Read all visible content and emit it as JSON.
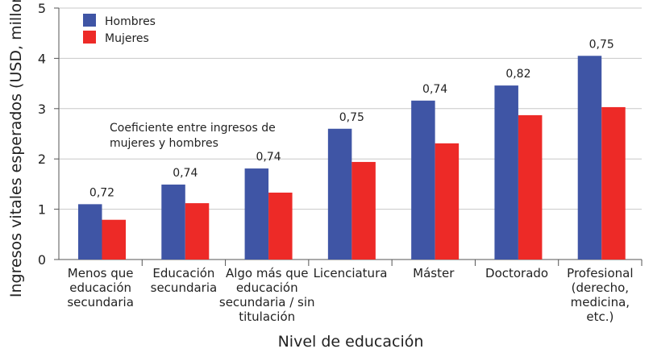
{
  "chart_data": {
    "type": "bar",
    "title": "",
    "xlabel": "Nivel de educación",
    "ylabel": "Ingresos vitales esperados (USD, millones)",
    "ylim": [
      0,
      5
    ],
    "yticks": [
      "0",
      "1",
      "2",
      "3",
      "4",
      "5"
    ],
    "grid": true,
    "legend_position": "top-left",
    "categories": [
      [
        "Menos que",
        "educación",
        "secundaria"
      ],
      [
        "Educación",
        "secundaria"
      ],
      [
        "Algo más que",
        "educación",
        "secundaria / sin",
        "titulación"
      ],
      [
        "Licenciatura"
      ],
      [
        "Máster"
      ],
      [
        "Doctorado"
      ],
      [
        "Profesional",
        "(derecho,",
        "medicina,",
        "etc.)"
      ]
    ],
    "series": [
      {
        "name": "Hombres",
        "color": "#3f55a5",
        "values": [
          1.1,
          1.49,
          1.81,
          2.6,
          3.16,
          3.46,
          4.05
        ]
      },
      {
        "name": "Mujeres",
        "color": "#ed2a27",
        "values": [
          0.79,
          1.12,
          1.33,
          1.94,
          2.31,
          2.87,
          3.03
        ]
      }
    ],
    "ratio_labels": [
      "0,72",
      "0,74",
      "0,74",
      "0,75",
      "0,74",
      "0,82",
      "0,75"
    ],
    "annotation": [
      "Coeficiente entre ingresos de",
      "mujeres y hombres"
    ]
  }
}
